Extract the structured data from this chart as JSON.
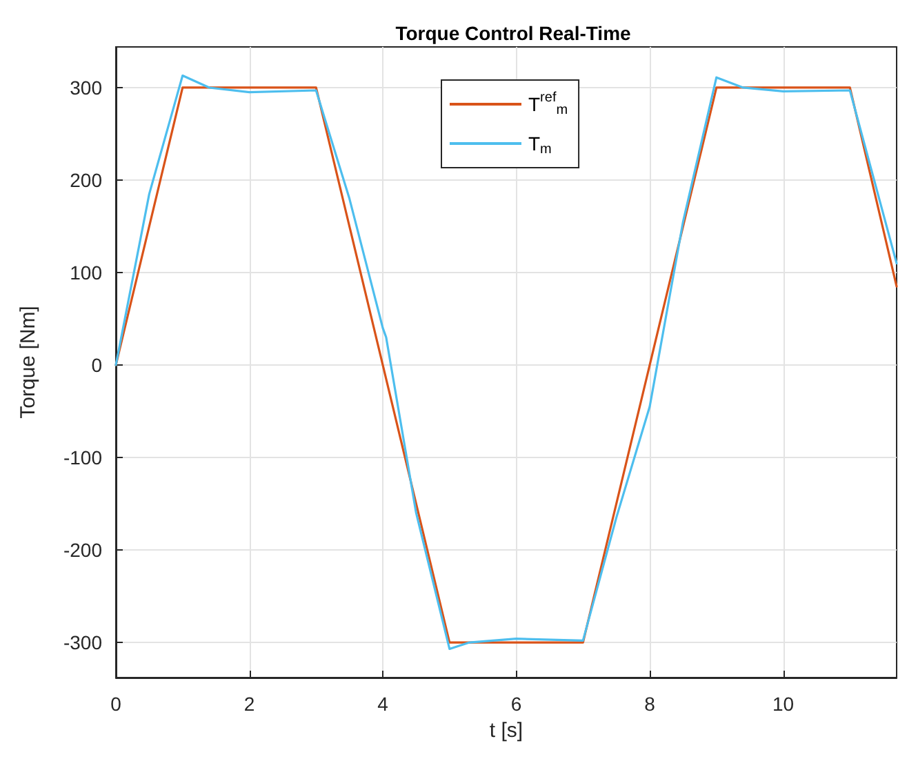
{
  "chart_data": {
    "type": "line",
    "title": "Torque Control Real-Time",
    "xlabel": "t [s]",
    "ylabel": "Torque [Nm]",
    "xlim": [
      0,
      11.7
    ],
    "xticks": [
      0,
      2,
      4,
      6,
      8,
      10
    ],
    "ylim": [
      -338,
      344
    ],
    "yticks": [
      -300,
      -200,
      -100,
      0,
      100,
      200,
      300
    ],
    "grid": true,
    "legend": "top",
    "line_style": "solid",
    "marker": "none",
    "series": [
      {
        "name": "T$^{ref}$$_{m}$",
        "color": "#d95319",
        "x": [
          0,
          1,
          3,
          5,
          7,
          9,
          11,
          11.7
        ],
        "values": [
          0,
          300,
          300,
          -300,
          -300,
          300,
          300,
          85
        ]
      },
      {
        "name": "T$_{m}$",
        "color": "#4dbeee",
        "x": [
          0,
          0.5,
          1,
          1.4,
          2,
          3,
          3.5,
          4,
          4.05,
          4.5,
          5,
          5.3,
          6,
          7,
          7.5,
          8,
          8.5,
          9,
          9.4,
          10,
          11,
          11.7
        ],
        "values": [
          0,
          185,
          313,
          300,
          295,
          297,
          180,
          40,
          30,
          -160,
          -307,
          -300,
          -296,
          -298,
          -165,
          -45,
          155,
          311,
          300,
          296,
          297,
          110
        ]
      }
    ]
  }
}
